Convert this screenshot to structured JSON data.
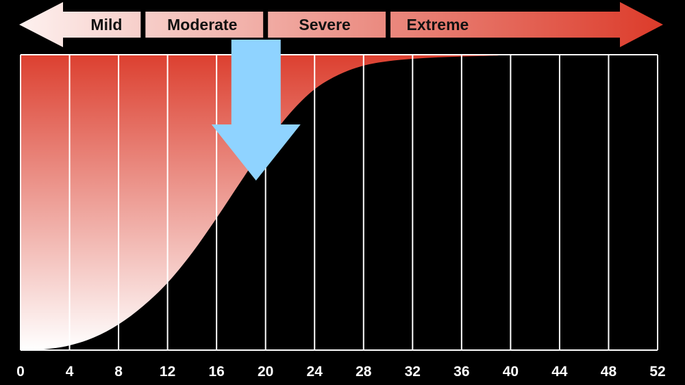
{
  "chart_data": {
    "type": "area",
    "x": [
      0,
      2,
      4,
      6,
      8,
      10,
      12,
      14,
      16,
      18,
      20,
      22,
      24,
      26,
      28,
      30,
      32,
      34,
      36,
      38,
      39
    ],
    "y": [
      0,
      0.3,
      1.6,
      4.3,
      8.7,
      14.9,
      22.8,
      32.9,
      44.7,
      57.2,
      69.5,
      80.2,
      88.3,
      93.3,
      96.3,
      97.8,
      98.6,
      99.1,
      99.4,
      99.6,
      99.7
    ],
    "xlim": [
      0,
      52
    ],
    "ylim": [
      0,
      100
    ],
    "x_ticks": [
      "0",
      "4",
      "8",
      "12",
      "16",
      "20",
      "24",
      "28",
      "32",
      "36",
      "40",
      "44",
      "48",
      "52"
    ],
    "x_tick_values": [
      0,
      4,
      8,
      12,
      16,
      20,
      24,
      28,
      32,
      36,
      40,
      44,
      48,
      52
    ],
    "title": "",
    "xlabel": "",
    "ylabel": "",
    "grid": "vertical",
    "fill_gradient": {
      "top": "#dc4030",
      "bottom": "#ffffff"
    },
    "severity_bands": [
      {
        "label": "Mild",
        "from": 0,
        "to": 10
      },
      {
        "label": "Moderate",
        "from": 10,
        "to": 20
      },
      {
        "label": "Severe",
        "from": 20,
        "to": 30
      },
      {
        "label": "Extreme",
        "from": 30,
        "to": 52
      }
    ],
    "marker": {
      "type": "down-arrow",
      "x": 19.5,
      "color": "#8fd3ff"
    }
  },
  "colors": {
    "background": "#000000",
    "grid": "#ffffff",
    "band_arrow_light": "#fdf1ef",
    "band_arrow_dark": "#dc3b2a",
    "text": "#ffffff"
  }
}
